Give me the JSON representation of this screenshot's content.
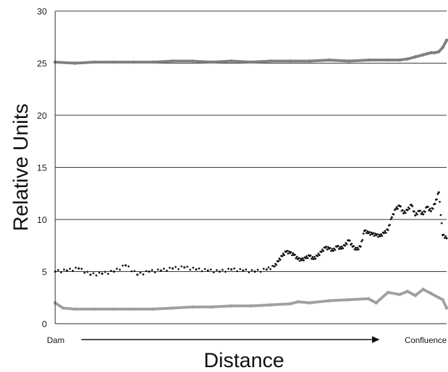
{
  "chart_data": {
    "type": "scatter",
    "title": "",
    "xlabel": "Distance",
    "ylabel": "Relative Units",
    "ylim": [
      0,
      30
    ],
    "yticks": [
      0,
      5,
      10,
      15,
      20,
      25,
      30
    ],
    "grid": "horizontal",
    "x_start_label": "Dam",
    "x_end_label": "Confluence",
    "x_axis_arrow": true,
    "xlim": [
      0,
      100
    ],
    "series": [
      {
        "color": "#808080",
        "marker": "dense",
        "x": [
          0,
          5,
          10,
          15,
          20,
          25,
          30,
          35,
          40,
          45,
          50,
          55,
          60,
          65,
          70,
          75,
          80,
          85,
          88,
          90,
          92,
          94,
          95,
          96,
          97,
          98,
          99,
          100
        ],
        "y": [
          25.1,
          25.0,
          25.1,
          25.1,
          25.1,
          25.1,
          25.2,
          25.2,
          25.1,
          25.2,
          25.1,
          25.2,
          25.2,
          25.2,
          25.3,
          25.2,
          25.3,
          25.3,
          25.3,
          25.4,
          25.6,
          25.8,
          25.9,
          26.0,
          26.0,
          26.1,
          26.5,
          27.2
        ]
      },
      {
        "color": "#111111",
        "marker": "dots",
        "x": [
          0,
          3,
          6,
          9,
          12,
          15,
          18,
          21,
          24,
          27,
          30,
          33,
          36,
          39,
          42,
          45,
          48,
          51,
          54,
          56,
          57,
          58,
          59,
          60,
          61,
          62,
          63,
          64,
          65,
          66,
          67,
          68,
          69,
          70,
          71,
          72,
          73,
          74,
          75,
          76,
          77,
          78,
          79,
          80,
          81,
          82,
          83,
          84,
          85,
          86,
          87,
          88,
          89,
          90,
          91,
          92,
          93,
          94,
          95,
          96,
          97,
          98,
          99,
          100
        ],
        "y": [
          5.0,
          5.1,
          5.3,
          4.7,
          4.8,
          5.0,
          5.6,
          4.7,
          5.0,
          5.1,
          5.3,
          5.4,
          5.2,
          5.1,
          5.0,
          5.2,
          5.1,
          5.0,
          5.2,
          5.5,
          6.0,
          6.5,
          6.9,
          6.8,
          6.6,
          6.2,
          6.1,
          6.3,
          6.5,
          6.2,
          6.5,
          6.9,
          7.3,
          7.2,
          7.0,
          7.4,
          7.2,
          7.5,
          8.0,
          7.4,
          7.1,
          7.4,
          8.9,
          8.7,
          8.6,
          8.5,
          8.4,
          8.7,
          9.0,
          10.2,
          11.0,
          11.3,
          10.6,
          10.9,
          11.4,
          10.4,
          10.8,
          10.5,
          11.2,
          10.8,
          11.5,
          12.6,
          8.5,
          8.2
        ]
      },
      {
        "color": "#a0a0a0",
        "marker": "dense",
        "x": [
          0,
          2,
          5,
          10,
          15,
          20,
          25,
          30,
          35,
          40,
          45,
          50,
          55,
          60,
          62,
          65,
          70,
          75,
          80,
          82,
          85,
          88,
          90,
          92,
          94,
          96,
          98,
          99,
          100
        ],
        "y": [
          2.0,
          1.5,
          1.4,
          1.4,
          1.4,
          1.4,
          1.4,
          1.5,
          1.6,
          1.6,
          1.7,
          1.7,
          1.8,
          1.9,
          2.1,
          2.0,
          2.2,
          2.3,
          2.4,
          2.0,
          3.0,
          2.8,
          3.1,
          2.7,
          3.3,
          2.9,
          2.5,
          2.3,
          1.5
        ]
      }
    ]
  }
}
